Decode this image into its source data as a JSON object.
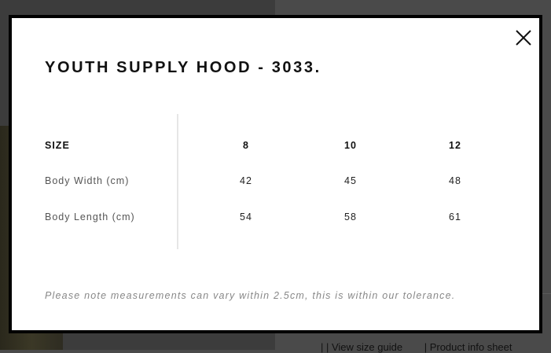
{
  "modal": {
    "title": "YOUTH SUPPLY HOOD - 3033.",
    "table": {
      "header": [
        "SIZE",
        "8",
        "10",
        "12"
      ],
      "rows": [
        {
          "label": "Body Width (cm)",
          "values": [
            "42",
            "45",
            "48"
          ]
        },
        {
          "label": "Body Length (cm)",
          "values": [
            "54",
            "58",
            "61"
          ]
        }
      ]
    },
    "note": "Please note measurements can vary within 2.5cm, this is within our tolerance.",
    "close_icon": "close-icon"
  },
  "background": {
    "links": [
      "View size guide",
      "Product info sheet"
    ]
  }
}
